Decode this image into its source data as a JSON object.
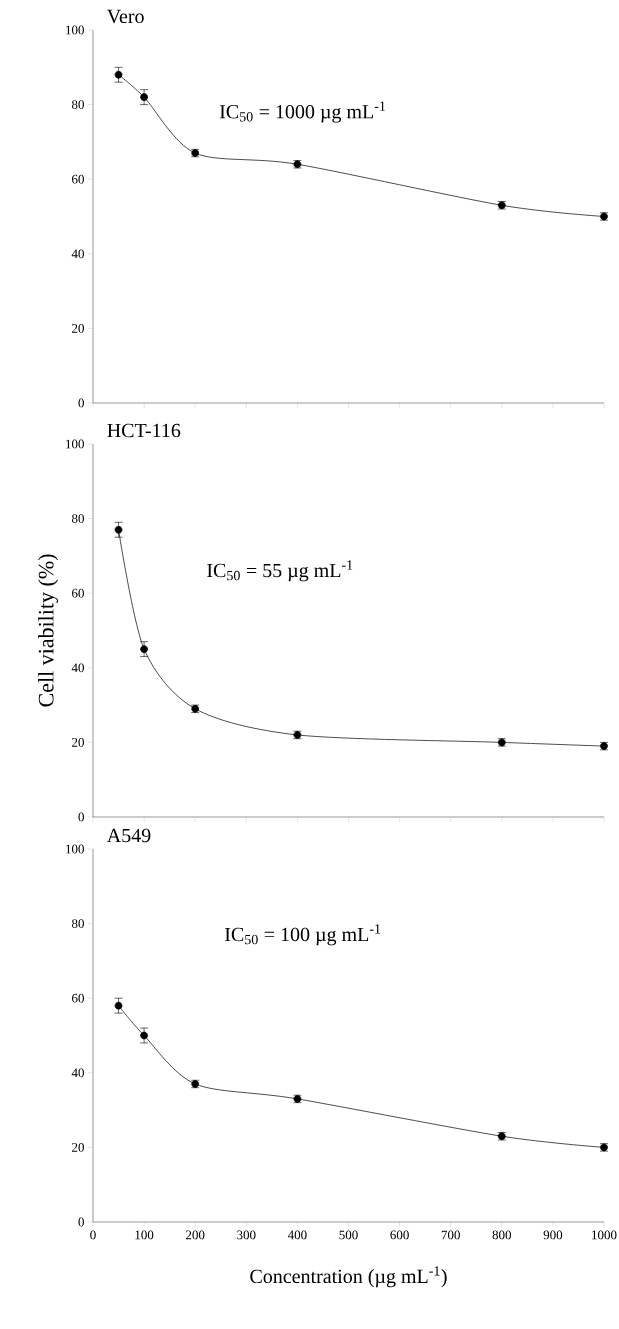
{
  "chart_data": [
    {
      "type": "line",
      "title": "Vero",
      "annotations": [
        "IC$_{50}$ = 1000 µg mL$^{-1}$"
      ],
      "x": [
        50,
        100,
        200,
        400,
        800,
        1000
      ],
      "xlim": [
        0,
        1000
      ],
      "xticks": [
        {
          "value": 0,
          "label": null
        },
        {
          "value": 100,
          "label": null
        },
        {
          "value": 200,
          "label": null
        },
        {
          "value": 300,
          "label": null
        },
        {
          "value": 400,
          "label": null
        },
        {
          "value": 500,
          "label": null
        },
        {
          "value": 600,
          "label": null
        },
        {
          "value": 700,
          "label": null
        },
        {
          "value": 800,
          "label": null
        },
        {
          "value": 900,
          "label": null
        },
        {
          "value": 1000,
          "label": null
        }
      ],
      "ylim": [
        0,
        100
      ],
      "yticks": [
        0,
        20,
        40,
        60,
        80,
        100
      ],
      "marker": "circle",
      "tick_labels": "y",
      "series": [
        {
          "color": "#000000",
          "values": [
            88,
            82,
            67,
            64,
            53,
            50
          ],
          "errors": [
            2,
            2,
            1,
            1,
            1,
            1
          ]
        }
      ]
    },
    {
      "type": "line",
      "title": "HCT-116",
      "ylabel": "Cell viability (%)",
      "annotations": [
        "IC$_{50}$ = 55 µg mL$^{-1}$"
      ],
      "x": [
        50,
        100,
        200,
        400,
        800,
        1000
      ],
      "xlim": [
        0,
        1000
      ],
      "xticks": [
        {
          "value": 0,
          "label": null
        },
        {
          "value": 100,
          "label": null
        },
        {
          "value": 200,
          "label": null
        },
        {
          "value": 300,
          "label": null
        },
        {
          "value": 400,
          "label": null
        },
        {
          "value": 500,
          "label": null
        },
        {
          "value": 600,
          "label": null
        },
        {
          "value": 700,
          "label": null
        },
        {
          "value": 800,
          "label": null
        },
        {
          "value": 900,
          "label": null
        },
        {
          "value": 1000,
          "label": null
        }
      ],
      "ylim": [
        0,
        100
      ],
      "yticks": [
        0,
        20,
        40,
        60,
        80,
        100
      ],
      "marker": "circle",
      "tick_labels": "y",
      "series": [
        {
          "color": "#000000",
          "values": [
            77,
            45,
            29,
            22,
            20,
            19
          ],
          "errors": [
            2,
            2,
            1,
            1,
            1,
            1
          ]
        }
      ]
    },
    {
      "type": "line",
      "title": "A549",
      "xlabel": "Concentration (µg mL$^{-1}$)",
      "annotations": [
        "IC$_{50}$ = 100 µg mL$^{-1}$"
      ],
      "x": [
        50,
        100,
        200,
        400,
        800,
        1000
      ],
      "xlim": [
        0,
        1000
      ],
      "xticks": [
        0,
        100,
        200,
        300,
        400,
        500,
        600,
        700,
        800,
        900,
        1000
      ],
      "ylim": [
        0,
        100
      ],
      "yticks": [
        0,
        20,
        40,
        60,
        80,
        100
      ],
      "marker": "circle",
      "series": [
        {
          "color": "#000000",
          "values": [
            58,
            50,
            37,
            33,
            23,
            20
          ],
          "errors": [
            2,
            2,
            1,
            1,
            1,
            1
          ]
        }
      ]
    }
  ]
}
